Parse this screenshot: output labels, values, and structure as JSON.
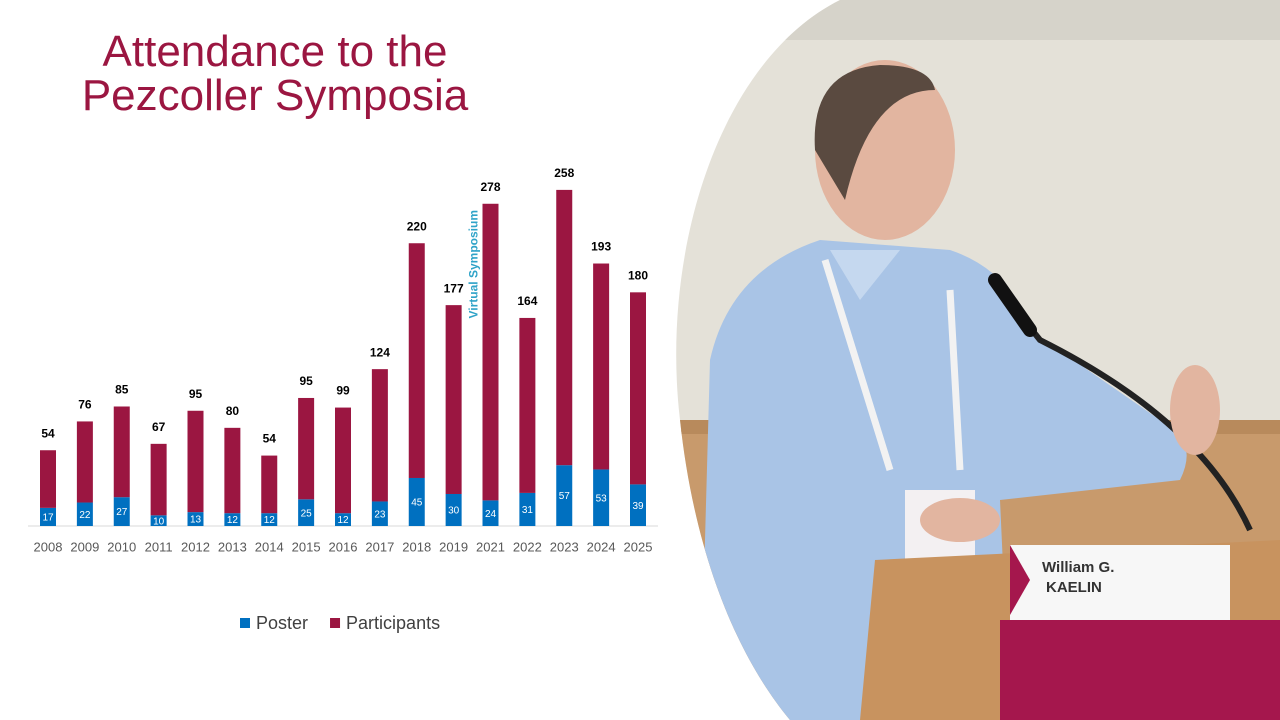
{
  "chart_data": {
    "type": "stacked-bar",
    "title": "Attendance to the Pezcoller Symposia",
    "annotation": "Virtual Symposium",
    "annotation_category": "2021",
    "categories": [
      "2008",
      "2009",
      "2010",
      "2011",
      "2012",
      "2013",
      "2014",
      "2015",
      "2016",
      "2017",
      "2018",
      "2019",
      "2021",
      "2022",
      "2023",
      "2024",
      "2025"
    ],
    "series": [
      {
        "name": "Poster",
        "color": "#0070c0",
        "values": [
          17,
          22,
          27,
          10,
          13,
          12,
          12,
          25,
          12,
          23,
          45,
          30,
          24,
          31,
          57,
          53,
          39
        ]
      },
      {
        "name": "Participants",
        "color": "#9b1641",
        "values": [
          54,
          76,
          85,
          67,
          95,
          80,
          54,
          95,
          99,
          124,
          220,
          177,
          278,
          164,
          258,
          193,
          180
        ]
      }
    ],
    "legend": "bottom"
  },
  "photo": {
    "name_plate": [
      "William G.",
      "KAELIN"
    ]
  }
}
